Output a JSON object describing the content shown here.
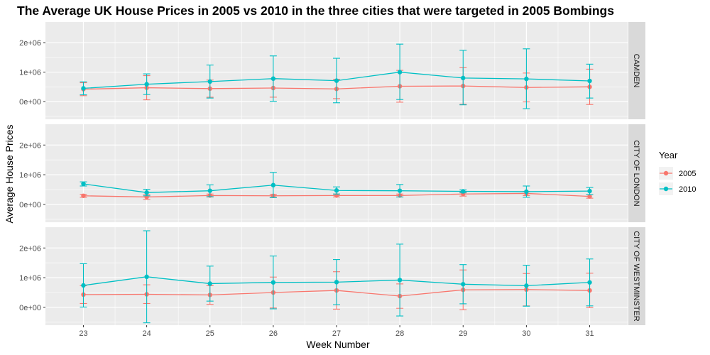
{
  "chart_data": {
    "type": "line",
    "title": "The Average UK House Prices in 2005 vs 2010 in the three cities that were targeted in 2005 Bombings",
    "xlabel": "Week Number",
    "ylabel": "Average House Prices",
    "x": [
      23,
      24,
      25,
      26,
      27,
      28,
      29,
      30,
      31
    ],
    "xlim": [
      22.4,
      31.6
    ],
    "ylim": [
      -600000,
      2700000
    ],
    "y_ticks": [
      0,
      1000000,
      2000000
    ],
    "y_tick_labels": [
      "0e+00",
      "1e+06",
      "2e+06"
    ],
    "grid": true,
    "legend": {
      "title": "Year",
      "position": "right"
    },
    "colors": {
      "2005": "#F8766D",
      "2010": "#00BFC4",
      "panel_bg": "#EBEBEB",
      "strip_bg": "#D9D9D9",
      "grid": "#FFFFFF"
    },
    "panels": [
      {
        "label": "CAMDEN",
        "series": [
          {
            "name": "2005",
            "values": [
              420000,
              470000,
              440000,
              460000,
              430000,
              520000,
              530000,
              480000,
              500000
            ],
            "lower": [
              200000,
              60000,
              150000,
              150000,
              100000,
              -20000,
              -90000,
              -10000,
              -100000
            ],
            "upper": [
              640000,
              880000,
              730000,
              770000,
              760000,
              1060000,
              1150000,
              970000,
              1100000
            ]
          },
          {
            "name": "2010",
            "values": [
              450000,
              590000,
              680000,
              780000,
              710000,
              1000000,
              800000,
              770000,
              700000
            ],
            "lower": [
              230000,
              240000,
              120000,
              10000,
              -40000,
              70000,
              -110000,
              -240000,
              120000
            ],
            "upper": [
              670000,
              940000,
              1240000,
              1550000,
              1470000,
              1950000,
              1740000,
              1790000,
              1270000
            ]
          }
        ]
      },
      {
        "label": "CITY OF LONDON",
        "series": [
          {
            "name": "2005",
            "values": [
              290000,
              250000,
              300000,
              290000,
              300000,
              300000,
              350000,
              370000,
              270000
            ],
            "lower": [
              240000,
              170000,
              250000,
              240000,
              250000,
              250000,
              280000,
              300000,
              210000
            ],
            "upper": [
              340000,
              330000,
              350000,
              340000,
              350000,
              350000,
              420000,
              440000,
              330000
            ]
          },
          {
            "name": "2010",
            "values": [
              690000,
              400000,
              460000,
              650000,
              470000,
              460000,
              440000,
              430000,
              450000
            ],
            "lower": [
              620000,
              290000,
              260000,
              230000,
              350000,
              250000,
              390000,
              240000,
              330000
            ],
            "upper": [
              760000,
              510000,
              660000,
              1080000,
              590000,
              670000,
              490000,
              620000,
              570000
            ]
          }
        ]
      },
      {
        "label": "CITY OF WESTMINSTER",
        "series": [
          {
            "name": "2005",
            "values": [
              430000,
              440000,
              420000,
              500000,
              570000,
              380000,
              590000,
              600000,
              570000
            ],
            "lower": [
              130000,
              130000,
              100000,
              -20000,
              -60000,
              -30000,
              -80000,
              50000,
              -10000
            ],
            "upper": [
              730000,
              760000,
              730000,
              1020000,
              1200000,
              790000,
              1260000,
              1140000,
              1150000
            ]
          },
          {
            "name": "2010",
            "values": [
              740000,
              1030000,
              800000,
              840000,
              850000,
              920000,
              780000,
              730000,
              840000
            ],
            "lower": [
              10000,
              -520000,
              210000,
              -50000,
              90000,
              -290000,
              120000,
              40000,
              50000
            ],
            "upper": [
              1470000,
              2580000,
              1390000,
              1730000,
              1610000,
              2130000,
              1440000,
              1420000,
              1630000
            ]
          }
        ]
      }
    ]
  }
}
